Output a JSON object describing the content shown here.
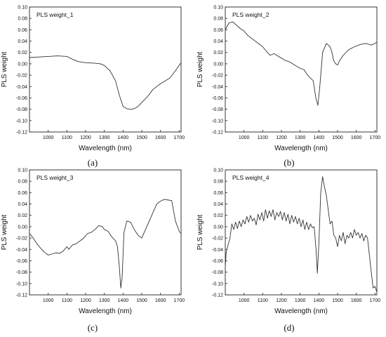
{
  "figure": {
    "caption_a": "(a)",
    "caption_b": "(b)",
    "caption_c": "(c)",
    "caption_d": "(d)"
  },
  "chart_data": [
    {
      "type": "line",
      "title": "PLS weight_1",
      "xlabel": "Wavelength (nm)",
      "ylabel": "PLS weight",
      "xlim": [
        900,
        1710
      ],
      "ylim": [
        -0.12,
        0.1
      ],
      "xticks": [
        1000,
        1100,
        1200,
        1300,
        1400,
        1500,
        1600,
        1700
      ],
      "yticks": [
        -0.12,
        -0.1,
        -0.08,
        -0.06,
        -0.04,
        -0.02,
        0.0,
        0.02,
        0.04,
        0.06,
        0.08,
        0.1
      ],
      "ytick_labels": [
        "-0.12",
        "-0.10",
        "-0.08",
        "-0.06",
        "-0.04",
        "-0.02",
        "0.00",
        "0.02",
        "0.04",
        "0.06",
        "0.08",
        "0.10"
      ],
      "series": [
        {
          "x": [
            900,
            950,
            1000,
            1050,
            1100,
            1130,
            1160,
            1200,
            1250,
            1280,
            1300,
            1330,
            1360,
            1380,
            1400,
            1420,
            1440,
            1460,
            1480,
            1500,
            1530,
            1560,
            1600,
            1650,
            1680,
            1710
          ],
          "y": [
            0.011,
            0.012,
            0.013,
            0.014,
            0.013,
            0.008,
            0.004,
            0.002,
            0.001,
            0.0,
            -0.003,
            -0.012,
            -0.03,
            -0.055,
            -0.075,
            -0.079,
            -0.08,
            -0.079,
            -0.075,
            -0.068,
            -0.058,
            -0.045,
            -0.035,
            -0.025,
            -0.012,
            0.002
          ]
        }
      ]
    },
    {
      "type": "line",
      "title": "PLS weight_2",
      "xlabel": "Wavelength (nm)",
      "ylabel": "PLS weight",
      "xlim": [
        900,
        1710
      ],
      "ylim": [
        -0.12,
        0.1
      ],
      "xticks": [
        1000,
        1100,
        1200,
        1300,
        1400,
        1500,
        1600,
        1700
      ],
      "yticks": [
        -0.12,
        -0.1,
        -0.08,
        -0.06,
        -0.04,
        -0.02,
        0.0,
        0.02,
        0.04,
        0.06,
        0.08,
        0.1
      ],
      "ytick_labels": [
        "-0.12",
        "-0.10",
        "-0.08",
        "-0.06",
        "-0.04",
        "-0.02",
        "0.00",
        "0.02",
        "0.04",
        "0.06",
        "0.08",
        "0.10"
      ],
      "series": [
        {
          "x": [
            900,
            920,
            940,
            960,
            980,
            1000,
            1020,
            1040,
            1060,
            1080,
            1100,
            1120,
            1140,
            1160,
            1180,
            1200,
            1220,
            1240,
            1260,
            1280,
            1300,
            1320,
            1340,
            1355,
            1370,
            1385,
            1395,
            1405,
            1420,
            1440,
            1460,
            1470,
            1480,
            1490,
            1500,
            1510,
            1530,
            1560,
            1590,
            1620,
            1650,
            1680,
            1700,
            1710
          ],
          "y": [
            0.06,
            0.072,
            0.074,
            0.068,
            0.062,
            0.058,
            0.05,
            0.045,
            0.04,
            0.035,
            0.03,
            0.022,
            0.015,
            0.018,
            0.014,
            0.01,
            0.006,
            0.004,
            0.0,
            -0.004,
            -0.008,
            -0.01,
            -0.02,
            -0.025,
            -0.03,
            -0.062,
            -0.073,
            -0.04,
            0.02,
            0.036,
            0.03,
            0.02,
            0.005,
            0.0,
            -0.002,
            0.005,
            0.015,
            0.025,
            0.03,
            0.034,
            0.036,
            0.033,
            0.036,
            0.038
          ]
        }
      ]
    },
    {
      "type": "line",
      "title": "PLS weight_3",
      "xlabel": "Wavelength (nm)",
      "ylabel": "PLS weight",
      "xlim": [
        900,
        1710
      ],
      "ylim": [
        -0.12,
        0.1
      ],
      "xticks": [
        1000,
        1100,
        1200,
        1300,
        1400,
        1500,
        1600,
        1700
      ],
      "yticks": [
        -0.12,
        -0.1,
        -0.08,
        -0.06,
        -0.04,
        -0.02,
        0.0,
        0.02,
        0.04,
        0.06,
        0.08,
        0.1
      ],
      "ytick_labels": [
        "-0.12",
        "-0.10",
        "-0.08",
        "-0.06",
        "-0.04",
        "-0.02",
        "0.00",
        "0.02",
        "0.04",
        "0.06",
        "0.08",
        "0.10"
      ],
      "series": [
        {
          "x": [
            900,
            920,
            940,
            960,
            980,
            1000,
            1020,
            1040,
            1060,
            1080,
            1100,
            1110,
            1130,
            1150,
            1170,
            1190,
            1210,
            1230,
            1250,
            1270,
            1290,
            1300,
            1320,
            1340,
            1360,
            1370,
            1380,
            1388,
            1395,
            1405,
            1420,
            1440,
            1460,
            1480,
            1500,
            1520,
            1540,
            1560,
            1580,
            1600,
            1620,
            1640,
            1660,
            1680,
            1700,
            1710
          ],
          "y": [
            -0.012,
            -0.02,
            -0.03,
            -0.038,
            -0.045,
            -0.05,
            -0.048,
            -0.046,
            -0.047,
            -0.043,
            -0.035,
            -0.04,
            -0.032,
            -0.03,
            -0.025,
            -0.02,
            -0.012,
            -0.01,
            -0.005,
            0.002,
            0.0,
            -0.005,
            -0.008,
            -0.018,
            -0.025,
            -0.035,
            -0.07,
            -0.108,
            -0.09,
            -0.01,
            0.01,
            0.008,
            -0.005,
            -0.015,
            -0.02,
            -0.005,
            0.01,
            0.025,
            0.04,
            0.045,
            0.048,
            0.047,
            0.046,
            0.01,
            -0.008,
            -0.012
          ]
        }
      ]
    },
    {
      "type": "line",
      "title": "PLS weight_4",
      "xlabel": "Wavelength (nm)",
      "ylabel": "PLS weight",
      "xlim": [
        900,
        1710
      ],
      "ylim": [
        -0.12,
        0.1
      ],
      "xticks": [
        1000,
        1100,
        1200,
        1300,
        1400,
        1500,
        1600,
        1700
      ],
      "yticks": [
        -0.12,
        -0.1,
        -0.08,
        -0.06,
        -0.04,
        -0.02,
        0.0,
        0.02,
        0.04,
        0.06,
        0.08,
        0.1
      ],
      "ytick_labels": [
        "-0.12",
        "-0.10",
        "-0.08",
        "-0.06",
        "-0.04",
        "-0.02",
        "0.00",
        "0.02",
        "0.04",
        "0.06",
        "0.08",
        "0.10"
      ],
      "series": [
        {
          "x": [
            900,
            905,
            915,
            925,
            935,
            945,
            955,
            965,
            975,
            985,
            995,
            1005,
            1015,
            1025,
            1035,
            1045,
            1055,
            1065,
            1075,
            1085,
            1095,
            1105,
            1115,
            1125,
            1135,
            1145,
            1155,
            1165,
            1175,
            1185,
            1195,
            1205,
            1215,
            1225,
            1235,
            1245,
            1255,
            1265,
            1275,
            1285,
            1295,
            1305,
            1315,
            1325,
            1335,
            1345,
            1355,
            1365,
            1375,
            1385,
            1392,
            1400,
            1410,
            1420,
            1430,
            1440,
            1450,
            1460,
            1470,
            1480,
            1490,
            1500,
            1510,
            1520,
            1530,
            1540,
            1550,
            1560,
            1570,
            1580,
            1590,
            1600,
            1610,
            1620,
            1630,
            1640,
            1650,
            1660,
            1670,
            1680,
            1690,
            1700,
            1710
          ],
          "y": [
            -0.07,
            -0.045,
            -0.032,
            -0.02,
            0.005,
            -0.005,
            0.008,
            -0.003,
            0.01,
            0.0,
            0.012,
            0.005,
            0.018,
            0.008,
            0.02,
            0.01,
            0.015,
            0.003,
            0.022,
            0.012,
            0.025,
            0.01,
            0.03,
            0.015,
            0.028,
            0.018,
            0.03,
            0.012,
            0.025,
            0.018,
            0.027,
            0.012,
            0.025,
            0.01,
            0.022,
            0.005,
            0.02,
            0.008,
            0.018,
            0.005,
            0.015,
            0.0,
            0.012,
            -0.005,
            0.008,
            -0.005,
            0.005,
            -0.002,
            0.0,
            -0.04,
            -0.082,
            -0.03,
            0.06,
            0.088,
            0.07,
            0.055,
            0.03,
            0.005,
            0.01,
            -0.015,
            -0.02,
            -0.035,
            -0.015,
            -0.025,
            -0.01,
            -0.03,
            -0.015,
            -0.02,
            -0.01,
            -0.02,
            -0.005,
            -0.015,
            -0.01,
            -0.02,
            -0.012,
            -0.025,
            -0.015,
            -0.02,
            -0.05,
            -0.08,
            -0.108,
            -0.105,
            -0.115
          ]
        }
      ]
    }
  ]
}
